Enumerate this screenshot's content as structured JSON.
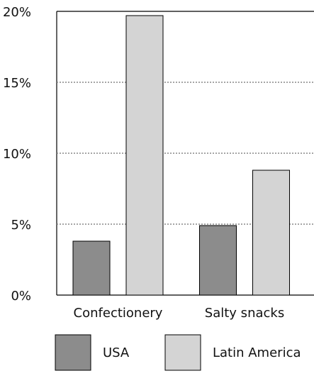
{
  "chart_data": {
    "type": "bar",
    "categories": [
      "Confectionery",
      "Salty snacks"
    ],
    "series": [
      {
        "name": "USA",
        "color": "#8c8c8c",
        "values": [
          3.8,
          4.9
        ]
      },
      {
        "name": "Latin America",
        "color": "#d4d4d4",
        "values": [
          19.7,
          8.8
        ]
      }
    ],
    "ylim": [
      0,
      20
    ],
    "yticks": [
      {
        "value": 0,
        "label": "0%"
      },
      {
        "value": 5,
        "label": "5%"
      },
      {
        "value": 10,
        "label": "10%"
      },
      {
        "value": 15,
        "label": "15%"
      },
      {
        "value": 20,
        "label": "20%"
      }
    ],
    "grid": true,
    "legend": "bottom"
  }
}
